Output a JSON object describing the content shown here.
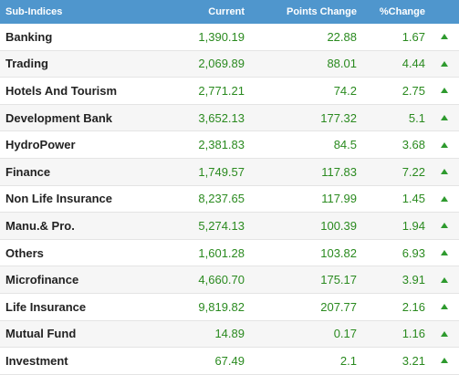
{
  "header": {
    "name": "Sub-Indices",
    "current": "Current",
    "points_change": "Points Change",
    "pct_change": "%Change"
  },
  "rows": [
    {
      "name": "Banking",
      "current": "1,390.19",
      "points": "22.88",
      "pct": "1.67",
      "trend_icon": "up-triangle-icon"
    },
    {
      "name": "Trading",
      "current": "2,069.89",
      "points": "88.01",
      "pct": "4.44",
      "trend_icon": "up-triangle-icon"
    },
    {
      "name": "Hotels And Tourism",
      "current": "2,771.21",
      "points": "74.2",
      "pct": "2.75",
      "trend_icon": "up-triangle-icon"
    },
    {
      "name": "Development Bank",
      "current": "3,652.13",
      "points": "177.32",
      "pct": "5.1",
      "trend_icon": "up-triangle-icon"
    },
    {
      "name": "HydroPower",
      "current": "2,381.83",
      "points": "84.5",
      "pct": "3.68",
      "trend_icon": "up-triangle-icon"
    },
    {
      "name": "Finance",
      "current": "1,749.57",
      "points": "117.83",
      "pct": "7.22",
      "trend_icon": "up-triangle-icon"
    },
    {
      "name": "Non Life Insurance",
      "current": "8,237.65",
      "points": "117.99",
      "pct": "1.45",
      "trend_icon": "up-triangle-icon"
    },
    {
      "name": "Manu.& Pro.",
      "current": "5,274.13",
      "points": "100.39",
      "pct": "1.94",
      "trend_icon": "up-triangle-icon"
    },
    {
      "name": "Others",
      "current": "1,601.28",
      "points": "103.82",
      "pct": "6.93",
      "trend_icon": "up-triangle-icon"
    },
    {
      "name": "Microfinance",
      "current": "4,660.70",
      "points": "175.17",
      "pct": "3.91",
      "trend_icon": "up-triangle-icon"
    },
    {
      "name": "Life Insurance",
      "current": "9,819.82",
      "points": "207.77",
      "pct": "2.16",
      "trend_icon": "up-triangle-icon"
    },
    {
      "name": "Mutual Fund",
      "current": "14.89",
      "points": "0.17",
      "pct": "1.16",
      "trend_icon": "up-triangle-icon"
    },
    {
      "name": "Investment",
      "current": "67.49",
      "points": "2.1",
      "pct": "3.21",
      "trend_icon": "up-triangle-icon"
    }
  ],
  "colors": {
    "header_bg": "#4f96cd",
    "value_green": "#2a8a1f",
    "arrow_green": "#2e9a2e"
  }
}
